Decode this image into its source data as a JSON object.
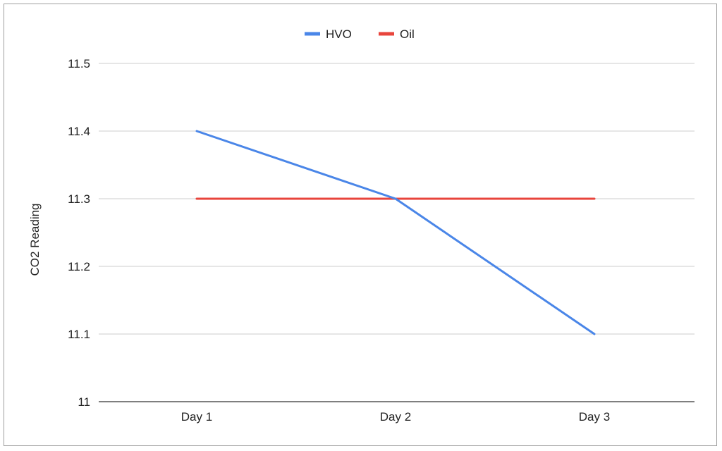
{
  "chart_data": {
    "type": "line",
    "title": "",
    "xlabel": "",
    "ylabel": "CO2 Reading",
    "categories": [
      "Day 1",
      "Day 2",
      "Day 3"
    ],
    "ylim": [
      11,
      11.5
    ],
    "yticks": [
      "11",
      "11.1",
      "11.2",
      "11.3",
      "11.4",
      "11.5"
    ],
    "grid": true,
    "legend_position": "top-center",
    "series": [
      {
        "name": "HVO",
        "color": "#4a86e8",
        "values": [
          11.4,
          11.3,
          11.1
        ]
      },
      {
        "name": "Oil",
        "color": "#e8453c",
        "values": [
          11.3,
          11.3,
          11.3
        ]
      }
    ]
  }
}
